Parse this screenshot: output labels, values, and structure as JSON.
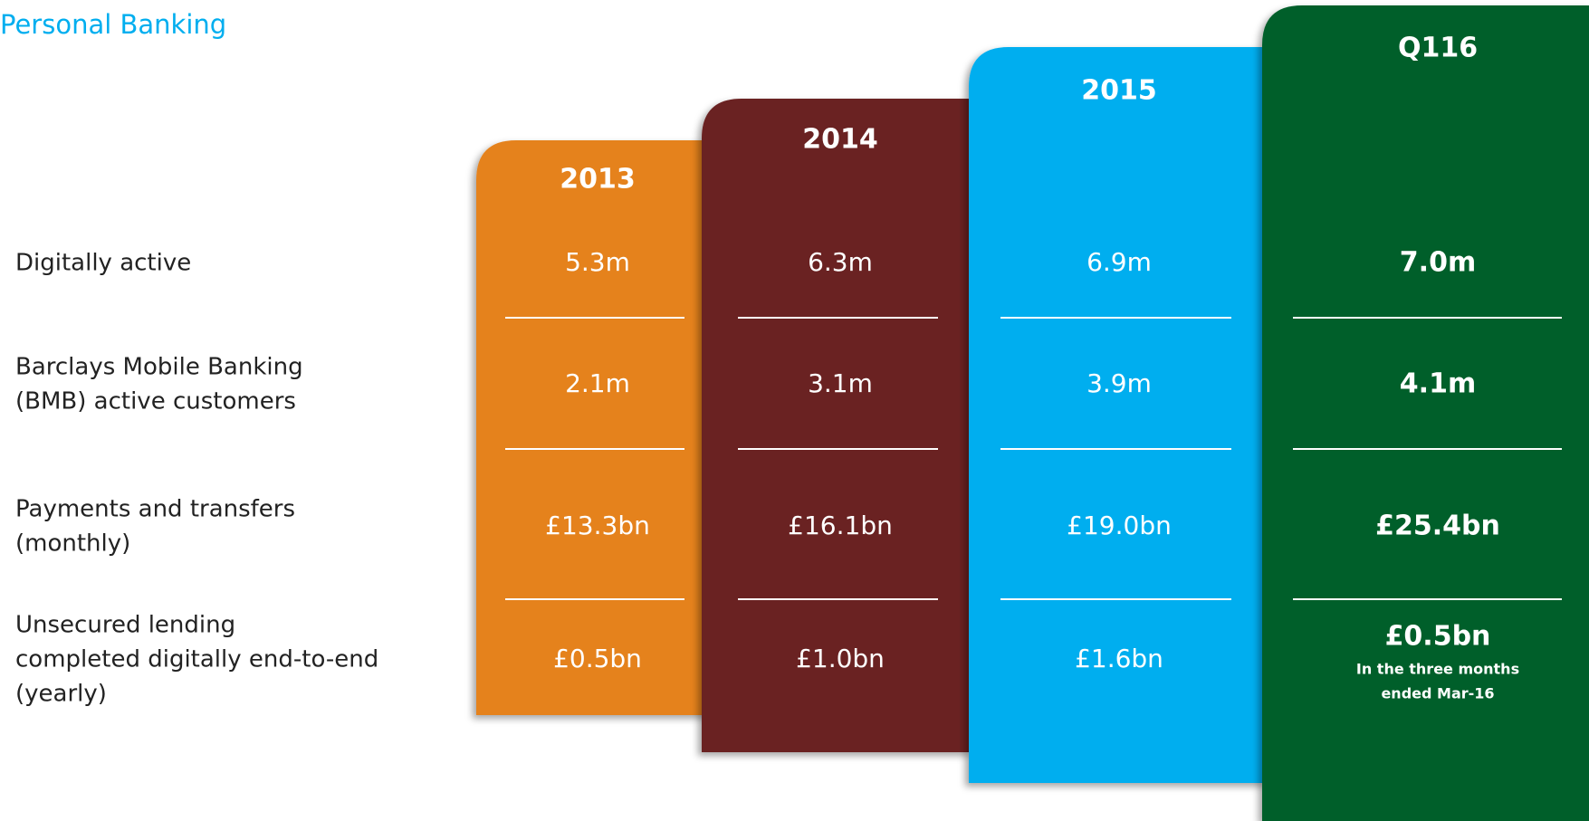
{
  "title": "Personal Banking",
  "rows": [
    [
      "Digitally active"
    ],
    [
      "Barclays Mobile Banking",
      "(BMB) active customers"
    ],
    [
      "Payments and transfers",
      "(monthly)"
    ],
    [
      "Unsecured lending",
      "completed digitally end-to-end",
      "(yearly)"
    ]
  ],
  "columns": [
    {
      "header": "2013",
      "values": [
        "5.3m",
        "2.1m",
        "£13.3bn",
        "£0.5bn"
      ],
      "color": "#e5821e"
    },
    {
      "header": "2014",
      "values": [
        "6.3m",
        "3.1m",
        "£16.1bn",
        "£1.0bn"
      ],
      "color": "#6b2022"
    },
    {
      "header": "2015",
      "values": [
        "6.9m",
        "3.9m",
        "£19.0bn",
        "£1.6bn"
      ],
      "color": "#00aeef"
    },
    {
      "header": "Q116",
      "values": [
        "7.0m",
        "4.1m",
        "£25.4bn",
        "£0.5bn"
      ],
      "color": "#005f2b",
      "note": [
        "In the three months",
        "ended Mar-16"
      ]
    }
  ]
}
